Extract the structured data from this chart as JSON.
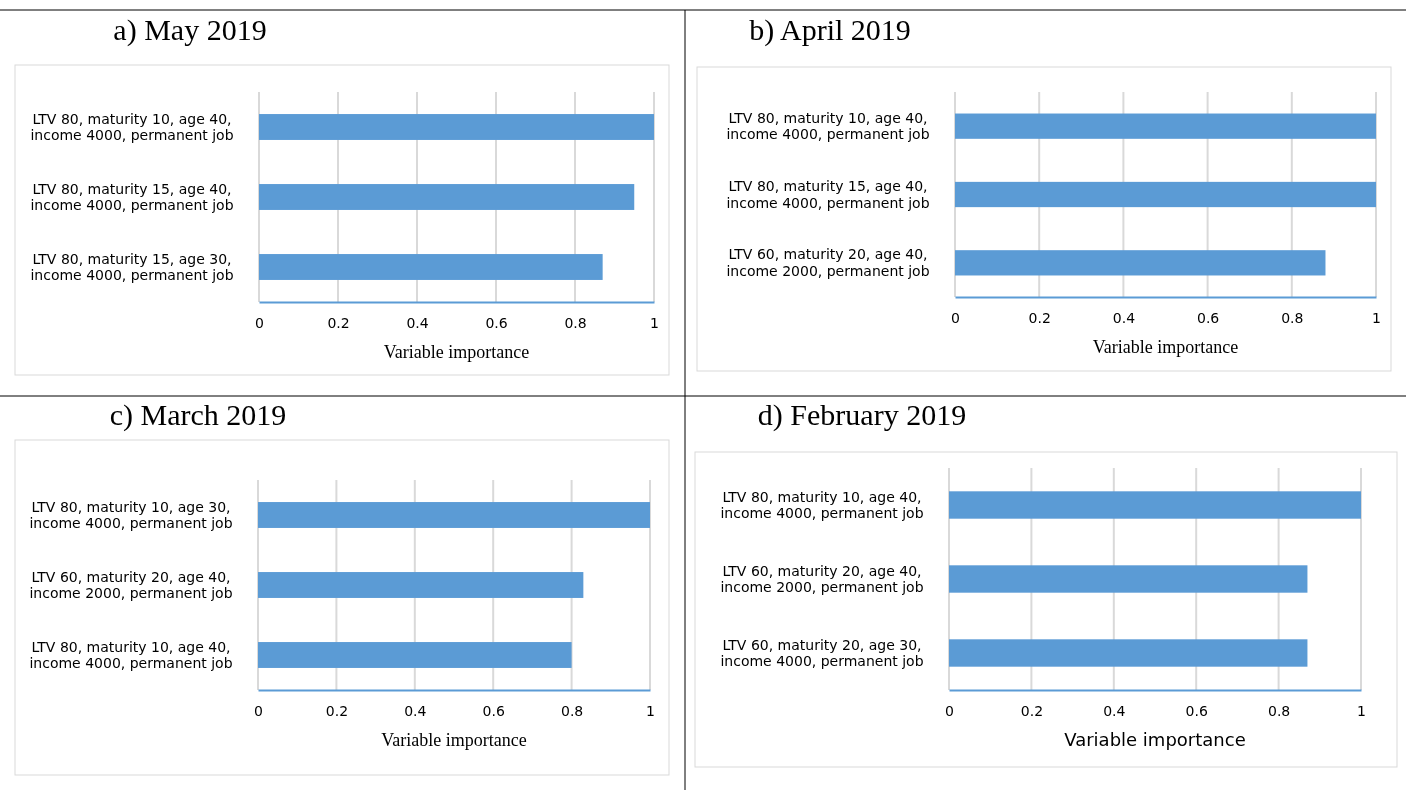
{
  "chart_data": [
    {
      "type": "bar",
      "orientation": "horizontal",
      "title": "a) May 2019",
      "xlabel": "Variable importance",
      "categories": [
        "LTV 80, maturity 10, age 40, income 4000, permanent job",
        "LTV 80, maturity 15, age 40, income 4000, permanent job",
        "LTV 80, maturity 15, age 30, income 4000, permanent job"
      ],
      "values": [
        1,
        0.95,
        0.87
      ],
      "color": "#5b9bd5",
      "xlim": [
        0,
        1
      ],
      "xticks": [
        0,
        0.2,
        0.4,
        0.6,
        0.8,
        1
      ],
      "grid": "x"
    },
    {
      "type": "bar",
      "orientation": "horizontal",
      "title": "b) April 2019",
      "xlabel": "Variable importance",
      "categories": [
        "LTV 80, maturity 10, age 40, income 4000, permanent job",
        "LTV 80, maturity 15, age 40, income 4000, permanent job",
        "LTV 60, maturity 20, age 40, income 2000, permanent job"
      ],
      "values": [
        1,
        1,
        0.88
      ],
      "color": "#5b9bd5",
      "xlim": [
        0,
        1
      ],
      "xticks": [
        0,
        0.2,
        0.4,
        0.6,
        0.8,
        1
      ],
      "grid": "x"
    },
    {
      "type": "bar",
      "orientation": "horizontal",
      "title": "c) March 2019",
      "xlabel": "Variable importance",
      "categories": [
        "LTV 80, maturity 10, age 30, income 4000, permanent job",
        "LTV 60, maturity 20, age 40, income 2000, permanent job",
        "LTV 80, maturity 10, age 40, income 4000, permanent job"
      ],
      "values": [
        1,
        0.83,
        0.8
      ],
      "color": "#5b9bd5",
      "xlim": [
        0,
        1
      ],
      "xticks": [
        0,
        0.2,
        0.4,
        0.6,
        0.8,
        1
      ],
      "grid": "x"
    },
    {
      "type": "bar",
      "orientation": "horizontal",
      "title": "d) February 2019",
      "xlabel": "Variable importance",
      "categories": [
        "LTV 80, maturity 10, age 40, income 4000, permanent job",
        "LTV 60, maturity 20, age 40, income 2000, permanent job",
        "LTV 60, maturity 20, age 30, income 4000, permanent job"
      ],
      "values": [
        1,
        0.87,
        0.87
      ],
      "color": "#5b9bd5",
      "xlim": [
        0,
        1
      ],
      "xticks": [
        0,
        0.2,
        0.4,
        0.6,
        0.8,
        1
      ],
      "grid": "x"
    }
  ]
}
